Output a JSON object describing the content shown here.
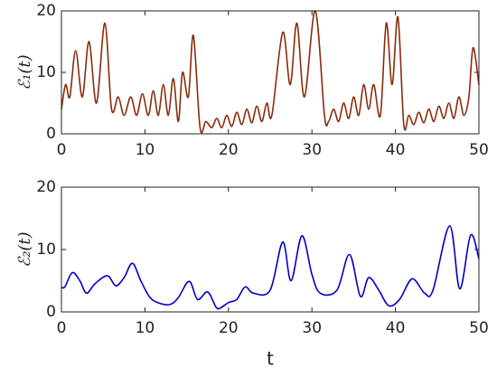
{
  "chart_data": [
    {
      "type": "line",
      "y_label": "ℰ₁(t)",
      "color": "#8b2a0a",
      "x": [
        0,
        0.5,
        1,
        1.7,
        2.5,
        3.3,
        4.2,
        5.2,
        6,
        6.8,
        7.5,
        8.3,
        9,
        9.7,
        10.4,
        11,
        11.6,
        12.2,
        12.8,
        13.4,
        14,
        14.5,
        15.2,
        15.8,
        16.6,
        17.3,
        18,
        18.6,
        19.2,
        19.8,
        20.4,
        21,
        21.6,
        22.2,
        22.8,
        23.4,
        24,
        24.6,
        25.2,
        26.5,
        27.4,
        28.2,
        29.1,
        30.4,
        31.5,
        32,
        32.6,
        33.2,
        33.8,
        34.4,
        35,
        35.6,
        36.2,
        36.8,
        37.4,
        38.2,
        38.9,
        39.6,
        40.3,
        41,
        41.6,
        42.2,
        42.8,
        43.4,
        44,
        44.6,
        45.2,
        45.8,
        46.4,
        47,
        47.6,
        48.2,
        48.8,
        49.3,
        50
      ],
      "values": [
        4,
        8,
        6,
        13.5,
        6,
        15,
        5,
        18,
        4,
        6,
        3,
        6,
        3,
        6.5,
        3,
        7,
        3,
        8,
        3,
        9,
        2,
        10,
        6,
        16,
        1,
        2,
        1,
        2.5,
        1,
        3,
        1.2,
        3.5,
        1.5,
        4,
        1.8,
        4.5,
        2,
        5,
        3,
        16.5,
        8,
        18,
        6,
        20,
        3,
        2,
        4,
        2,
        5,
        2.5,
        6,
        3,
        8,
        4,
        8,
        3,
        18,
        8,
        19,
        1.5,
        3,
        1.5,
        3.5,
        1.8,
        4,
        2,
        4.5,
        2.5,
        5,
        2.5,
        6,
        3,
        6,
        14,
        8
      ],
      "xlim": [
        0,
        50
      ],
      "ylim": [
        0,
        20
      ],
      "xticks": [
        0,
        10,
        20,
        30,
        40,
        50
      ],
      "yticks": [
        0,
        10,
        20
      ]
    },
    {
      "type": "line",
      "y_label": "ℰ₂(t)",
      "x_label": "t",
      "color": "#0000c8",
      "x": [
        0,
        0.4,
        1.3,
        2.2,
        3,
        4,
        5.5,
        6.5,
        7.5,
        8.5,
        9.5,
        10.5,
        11.5,
        13,
        14,
        15.3,
        16.3,
        17.5,
        18.5,
        19,
        20,
        21,
        22,
        23,
        25,
        26.5,
        27.5,
        28.8,
        30,
        31,
        33,
        34.5,
        35.8,
        36.8,
        38,
        39.2,
        40.5,
        42,
        43.5,
        44.5,
        46.5,
        47.7,
        49,
        50
      ],
      "values": [
        4,
        4,
        6.3,
        5,
        3,
        4.5,
        5.8,
        4.2,
        5.5,
        7.8,
        5,
        2.5,
        1.5,
        1.2,
        2.3,
        4.9,
        2,
        3.2,
        0.8,
        0.6,
        1.5,
        2,
        4,
        3,
        3.5,
        11.2,
        5,
        12.2,
        6,
        3,
        3.5,
        9.2,
        2.5,
        5.5,
        3.5,
        1,
        2,
        5.3,
        3,
        3.5,
        13.8,
        3.7,
        12.3,
        8.5
      ],
      "xlim": [
        0,
        50
      ],
      "ylim": [
        0,
        20
      ],
      "xticks": [
        0,
        10,
        20,
        30,
        40,
        50
      ],
      "yticks": [
        0,
        10,
        20
      ]
    }
  ]
}
